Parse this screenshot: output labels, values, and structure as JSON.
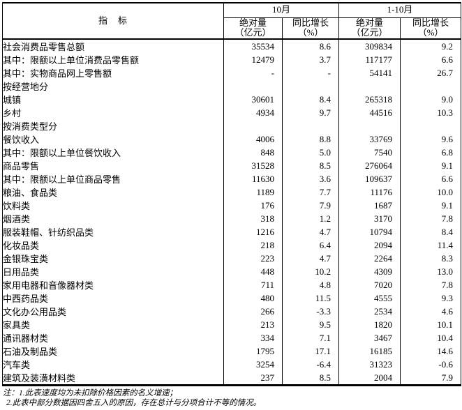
{
  "colors": {
    "border": "#000000",
    "text": "#000000",
    "background": "#ffffff"
  },
  "table": {
    "indicator_header": "指　标",
    "groups": [
      {
        "label": "10月"
      },
      {
        "label": "1-10月"
      }
    ],
    "sub_header": {
      "abs_line1": "绝对量",
      "abs_line2": "（亿元）",
      "yoy_line1": "同比增长",
      "yoy_line2": "（%）"
    },
    "rows": [
      {
        "label": "社会消费品零售总额",
        "indent": 0,
        "values": [
          "35534",
          "8.6",
          "309834",
          "9.2"
        ]
      },
      {
        "label": "其中：限额以上单位消费品零售额",
        "indent": 1,
        "values": [
          "12479",
          "3.7",
          "117177",
          "6.6"
        ]
      },
      {
        "label": "其中：实物商品网上零售额",
        "indent": 1,
        "values": [
          "-",
          "-",
          "54141",
          "26.7"
        ]
      },
      {
        "label": "按经营地分",
        "indent": 0,
        "values": [
          "",
          "",
          "",
          ""
        ]
      },
      {
        "label": "城镇",
        "indent": 1,
        "values": [
          "30601",
          "8.4",
          "265318",
          "9.0"
        ]
      },
      {
        "label": "乡村",
        "indent": 1,
        "values": [
          "4934",
          "9.7",
          "44516",
          "10.3"
        ]
      },
      {
        "label": "按消费类型分",
        "indent": 0,
        "values": [
          "",
          "",
          "",
          ""
        ]
      },
      {
        "label": "餐饮收入",
        "indent": 1,
        "values": [
          "4006",
          "8.8",
          "33769",
          "9.6"
        ]
      },
      {
        "label": "其中：限额以上单位餐饮收入",
        "indent": 2,
        "values": [
          "848",
          "5.0",
          "7540",
          "6.8"
        ]
      },
      {
        "label": "商品零售",
        "indent": 1,
        "values": [
          "31528",
          "8.5",
          "276064",
          "9.1"
        ]
      },
      {
        "label": "其中：限额以上单位商品零售",
        "indent": 2,
        "values": [
          "11630",
          "3.6",
          "109637",
          "6.6"
        ]
      },
      {
        "label": "粮油、食品类",
        "indent": 3,
        "values": [
          "1189",
          "7.7",
          "11176",
          "10.0"
        ]
      },
      {
        "label": "饮料类",
        "indent": 3,
        "values": [
          "176",
          "7.9",
          "1687",
          "9.1"
        ]
      },
      {
        "label": "烟酒类",
        "indent": 3,
        "values": [
          "318",
          "1.2",
          "3170",
          "7.8"
        ]
      },
      {
        "label": "服装鞋帽、针纺织品类",
        "indent": 3,
        "values": [
          "1216",
          "4.7",
          "10794",
          "8.4"
        ]
      },
      {
        "label": "化妆品类",
        "indent": 3,
        "values": [
          "218",
          "6.4",
          "2094",
          "11.4"
        ]
      },
      {
        "label": "金银珠宝类",
        "indent": 3,
        "values": [
          "223",
          "4.7",
          "2264",
          "8.3"
        ]
      },
      {
        "label": "日用品类",
        "indent": 3,
        "values": [
          "448",
          "10.2",
          "4309",
          "13.0"
        ]
      },
      {
        "label": "家用电器和音像器材类",
        "indent": 3,
        "values": [
          "711",
          "4.8",
          "7020",
          "7.8"
        ]
      },
      {
        "label": "中西药品类",
        "indent": 3,
        "values": [
          "480",
          "11.5",
          "4555",
          "9.3"
        ]
      },
      {
        "label": "文化办公用品类",
        "indent": 3,
        "values": [
          "266",
          "-3.3",
          "2534",
          "4.6"
        ]
      },
      {
        "label": "家具类",
        "indent": 3,
        "values": [
          "213",
          "9.5",
          "1820",
          "10.1"
        ]
      },
      {
        "label": "通讯器材类",
        "indent": 3,
        "values": [
          "334",
          "7.1",
          "3467",
          "10.4"
        ]
      },
      {
        "label": "石油及制品类",
        "indent": 3,
        "values": [
          "1795",
          "17.1",
          "16185",
          "14.6"
        ]
      },
      {
        "label": "汽车类",
        "indent": 3,
        "values": [
          "3254",
          "-6.4",
          "31323",
          "-0.6"
        ]
      },
      {
        "label": "建筑及装潢材料类",
        "indent": 3,
        "values": [
          "237",
          "8.5",
          "2004",
          "7.9"
        ]
      }
    ]
  },
  "footnotes": {
    "line1": "注：1.此表速度均为未扣除价格因素的名义增速；",
    "line2": "2.此表中部分数据因四舍五入的原因，存在总计与分项合计不等的情况。"
  }
}
